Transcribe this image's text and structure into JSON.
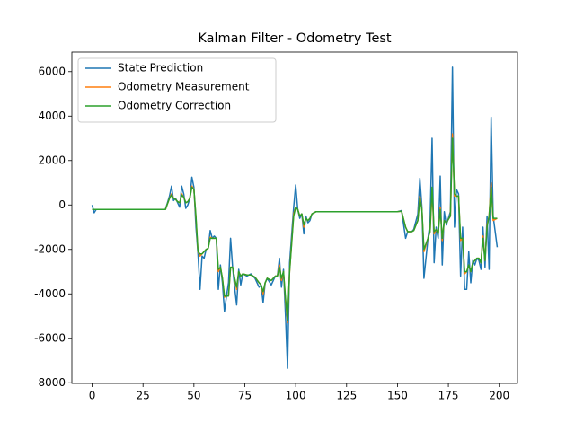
{
  "chart_data": {
    "type": "line",
    "title": "Kalman Filter - Odometry Test",
    "x": [
      0,
      1,
      2,
      36,
      38,
      39,
      40,
      41,
      42,
      43,
      44,
      45,
      46,
      47,
      48,
      49,
      50,
      51,
      52,
      53,
      54,
      55,
      56,
      57,
      58,
      59,
      60,
      61,
      62,
      63,
      64,
      65,
      66,
      67,
      68,
      69,
      70,
      71,
      72,
      73,
      74,
      76,
      78,
      80,
      82,
      83,
      84,
      85,
      86,
      88,
      90,
      91,
      92,
      93,
      94,
      95,
      96,
      97,
      99,
      100,
      101,
      102,
      103,
      104,
      105,
      106,
      107,
      108,
      110,
      150,
      152,
      154,
      155,
      157,
      158,
      160,
      161,
      162,
      163,
      165,
      166,
      167,
      168,
      169,
      170,
      171,
      172,
      173,
      174,
      176,
      177,
      178,
      179,
      180,
      181,
      182,
      183,
      184,
      185,
      186,
      187,
      188,
      189,
      190,
      191,
      192,
      193,
      194,
      195,
      196,
      197,
      199
    ],
    "series": [
      {
        "name": "State Prediction",
        "color": "#1f77b4",
        "values": [
          0,
          -350,
          -200,
          -200,
          400,
          850,
          200,
          300,
          100,
          -100,
          850,
          500,
          -150,
          0,
          300,
          1250,
          800,
          -1000,
          -2200,
          -3800,
          -2300,
          -2400,
          -2000,
          -1950,
          -1150,
          -1500,
          -1400,
          -1500,
          -3800,
          -2700,
          -3500,
          -4800,
          -4100,
          -3500,
          -1500,
          -2800,
          -3700,
          -4500,
          -2900,
          -3600,
          -3100,
          -3200,
          -3100,
          -3300,
          -3700,
          -3600,
          -4400,
          -3500,
          -3300,
          -3600,
          -3200,
          -3200,
          -2400,
          -3700,
          -2900,
          -5000,
          -7350,
          -2600,
          -100,
          900,
          -200,
          -600,
          -400,
          -1300,
          -500,
          -800,
          -700,
          -400,
          -300,
          -300,
          -250,
          -1500,
          -1200,
          -1200,
          -1100,
          -400,
          1200,
          -100,
          -3300,
          -1500,
          -800,
          3000,
          -2600,
          -1000,
          -1500,
          1300,
          -2700,
          -300,
          -900,
          -300,
          6200,
          -1000,
          700,
          500,
          -3200,
          -1000,
          -3800,
          -3800,
          -2100,
          -3500,
          -2500,
          -2700,
          -2400,
          -2500,
          -2900,
          -1000,
          -2800,
          -500,
          -2900,
          3950,
          -500,
          -1900
        ]
      },
      {
        "name": "Odometry Measurement",
        "color": "#ff7f0e",
        "values": [
          -200,
          -200,
          -200,
          -200,
          300,
          500,
          300,
          250,
          150,
          100,
          500,
          350,
          100,
          150,
          300,
          850,
          700,
          -600,
          -2100,
          -2300,
          -2200,
          -2100,
          -2000,
          -1950,
          -1450,
          -1500,
          -1500,
          -1500,
          -3000,
          -2800,
          -3300,
          -4150,
          -4100,
          -4100,
          -2800,
          -2800,
          -3300,
          -3800,
          -3000,
          -3200,
          -3100,
          -3150,
          -3150,
          -3250,
          -3500,
          -3600,
          -4000,
          -3500,
          -3300,
          -3400,
          -3200,
          -3200,
          -2700,
          -3400,
          -3000,
          -4300,
          -5300,
          -3000,
          -400,
          -100,
          -200,
          -500,
          -400,
          -1000,
          -600,
          -700,
          -600,
          -400,
          -300,
          -300,
          -280,
          -1000,
          -1200,
          -1200,
          -1150,
          -700,
          400,
          -200,
          -2100,
          -1500,
          -1200,
          600,
          -1300,
          -1100,
          -1300,
          -100,
          -1600,
          -700,
          -800,
          -500,
          3200,
          400,
          400,
          400,
          -1600,
          -1500,
          -3100,
          -3000,
          -2700,
          -3000,
          -2600,
          -2500,
          -2400,
          -2400,
          -2600,
          -1400,
          -2500,
          -900,
          -500,
          1000,
          -700,
          -600
        ]
      },
      {
        "name": "Odometry Correction",
        "color": "#2ca02c",
        "values": [
          -200,
          -200,
          -200,
          -200,
          300,
          450,
          300,
          250,
          150,
          100,
          450,
          350,
          100,
          150,
          300,
          800,
          700,
          -500,
          -2100,
          -2200,
          -2200,
          -2100,
          -2000,
          -1950,
          -1500,
          -1500,
          -1500,
          -1500,
          -2900,
          -2800,
          -3300,
          -4100,
          -4100,
          -4100,
          -2800,
          -2800,
          -3300,
          -3700,
          -3000,
          -3200,
          -3100,
          -3150,
          -3150,
          -3250,
          -3500,
          -3600,
          -3900,
          -3500,
          -3300,
          -3400,
          -3200,
          -3200,
          -2800,
          -3300,
          -3000,
          -4200,
          -5200,
          -3000,
          -500,
          -100,
          -200,
          -500,
          -400,
          -900,
          -600,
          -700,
          -600,
          -400,
          -300,
          -300,
          -280,
          -1000,
          -1200,
          -1200,
          -1150,
          -700,
          300,
          -200,
          -2000,
          -1500,
          -1200,
          800,
          -1200,
          -1100,
          -1300,
          -200,
          -1500,
          -700,
          -800,
          -500,
          3000,
          500,
          400,
          400,
          -1500,
          -1500,
          -3000,
          -3000,
          -2700,
          -3000,
          -2600,
          -2500,
          -2400,
          -2400,
          -2600,
          -1500,
          -2500,
          -1000,
          -500,
          800,
          -600,
          -600
        ]
      }
    ],
    "xlim": [
      -9.95,
      208.95
    ],
    "ylim": [
      -8030,
      6880
    ],
    "xticks": [
      0,
      25,
      50,
      75,
      100,
      125,
      150,
      175,
      200
    ],
    "yticks": [
      -8000,
      -6000,
      -4000,
      -2000,
      0,
      2000,
      4000,
      6000
    ],
    "legend": "upper left"
  }
}
